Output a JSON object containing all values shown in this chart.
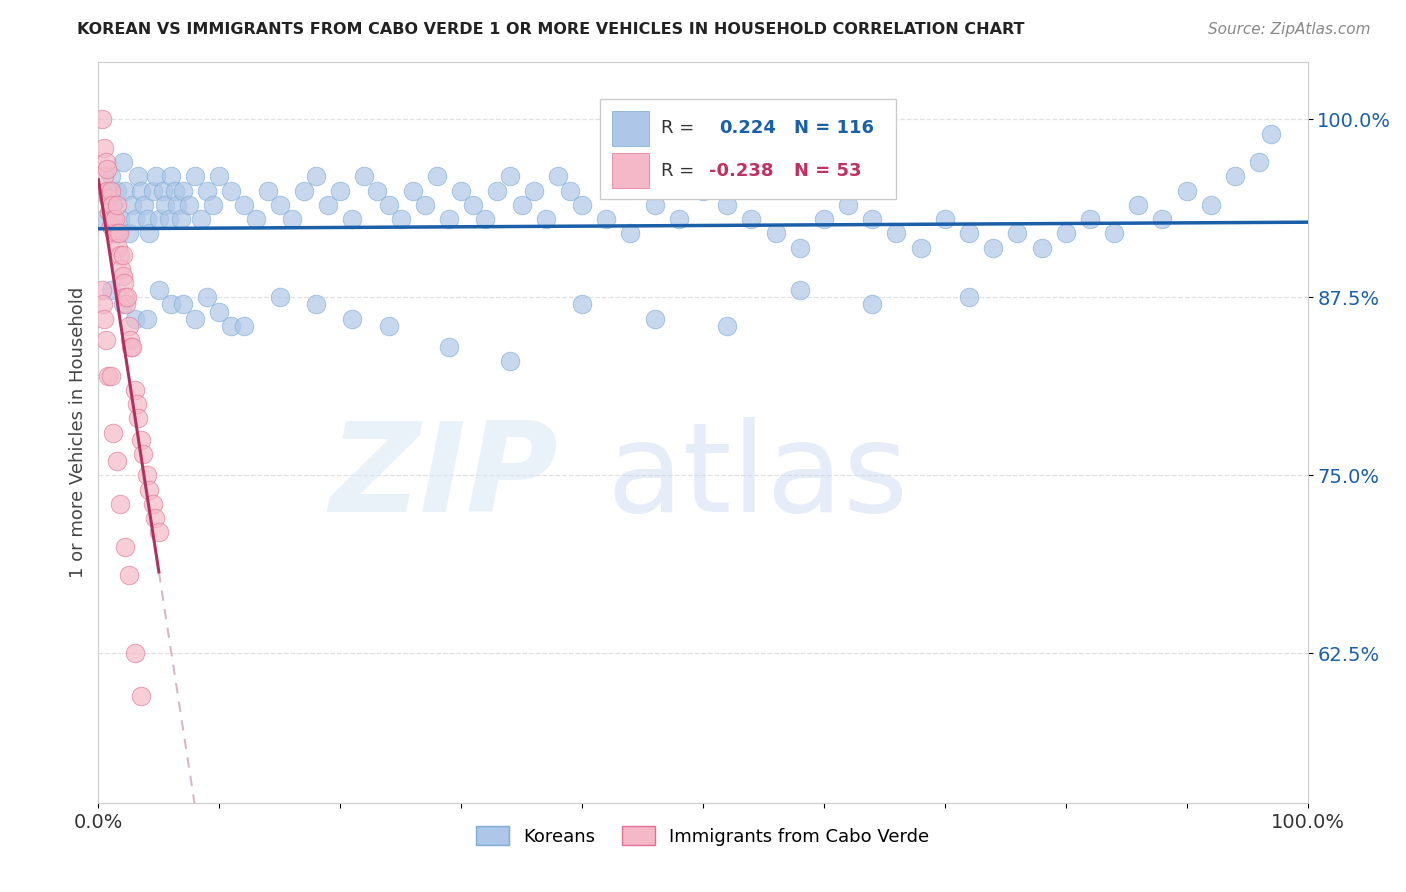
{
  "title": "KOREAN VS IMMIGRANTS FROM CABO VERDE 1 OR MORE VEHICLES IN HOUSEHOLD CORRELATION CHART",
  "source": "Source: ZipAtlas.com",
  "ylabel": "1 or more Vehicles in Household",
  "xlim": [
    0.0,
    1.0
  ],
  "ylim": [
    0.52,
    1.04
  ],
  "yticks": [
    0.625,
    0.75,
    0.875,
    1.0
  ],
  "ytick_labels": [
    "62.5%",
    "75.0%",
    "87.5%",
    "100.0%"
  ],
  "xtick_labels": [
    "0.0%",
    "",
    "",
    "",
    "",
    "",
    "",
    "",
    "",
    "",
    "100.0%"
  ],
  "legend_entries": [
    {
      "label": "Koreans",
      "color": "#aec6e8",
      "edge": "#7bacd4",
      "R": 0.224,
      "N": 116
    },
    {
      "label": "Immigrants from Cabo Verde",
      "color": "#f4b8c8",
      "edge": "#e07090",
      "R": -0.238,
      "N": 53
    }
  ],
  "korean_line_color": "#1a5fa8",
  "cabo_line_color": "#b03060",
  "cabo_dash_color": "#d8b8c8",
  "background_color": "#ffffff",
  "grid_color": "#dddddd",
  "korean_x": [
    0.005,
    0.008,
    0.01,
    0.012,
    0.015,
    0.018,
    0.02,
    0.022,
    0.025,
    0.028,
    0.03,
    0.033,
    0.035,
    0.038,
    0.04,
    0.042,
    0.045,
    0.048,
    0.05,
    0.053,
    0.055,
    0.058,
    0.06,
    0.063,
    0.065,
    0.068,
    0.07,
    0.075,
    0.08,
    0.085,
    0.09,
    0.095,
    0.1,
    0.11,
    0.12,
    0.13,
    0.14,
    0.15,
    0.16,
    0.17,
    0.18,
    0.19,
    0.2,
    0.21,
    0.22,
    0.23,
    0.24,
    0.25,
    0.26,
    0.27,
    0.28,
    0.29,
    0.3,
    0.31,
    0.32,
    0.33,
    0.34,
    0.35,
    0.36,
    0.37,
    0.38,
    0.39,
    0.4,
    0.42,
    0.44,
    0.46,
    0.48,
    0.5,
    0.52,
    0.54,
    0.56,
    0.58,
    0.6,
    0.62,
    0.64,
    0.66,
    0.68,
    0.7,
    0.72,
    0.74,
    0.76,
    0.78,
    0.8,
    0.82,
    0.84,
    0.86,
    0.88,
    0.9,
    0.92,
    0.94,
    0.96,
    0.97,
    0.01,
    0.02,
    0.03,
    0.04,
    0.05,
    0.06,
    0.07,
    0.08,
    0.09,
    0.1,
    0.11,
    0.12,
    0.15,
    0.18,
    0.21,
    0.24,
    0.29,
    0.34,
    0.4,
    0.46,
    0.52,
    0.58,
    0.64,
    0.72
  ],
  "korean_y": [
    0.93,
    0.95,
    0.96,
    0.94,
    0.95,
    0.93,
    0.97,
    0.95,
    0.92,
    0.94,
    0.93,
    0.96,
    0.95,
    0.94,
    0.93,
    0.92,
    0.95,
    0.96,
    0.93,
    0.95,
    0.94,
    0.93,
    0.96,
    0.95,
    0.94,
    0.93,
    0.95,
    0.94,
    0.96,
    0.93,
    0.95,
    0.94,
    0.96,
    0.95,
    0.94,
    0.93,
    0.95,
    0.94,
    0.93,
    0.95,
    0.96,
    0.94,
    0.95,
    0.93,
    0.96,
    0.95,
    0.94,
    0.93,
    0.95,
    0.94,
    0.96,
    0.93,
    0.95,
    0.94,
    0.93,
    0.95,
    0.96,
    0.94,
    0.95,
    0.93,
    0.96,
    0.95,
    0.94,
    0.93,
    0.92,
    0.94,
    0.93,
    0.95,
    0.94,
    0.93,
    0.92,
    0.91,
    0.93,
    0.94,
    0.93,
    0.92,
    0.91,
    0.93,
    0.92,
    0.91,
    0.92,
    0.91,
    0.92,
    0.93,
    0.92,
    0.94,
    0.93,
    0.95,
    0.94,
    0.96,
    0.97,
    0.99,
    0.88,
    0.87,
    0.86,
    0.86,
    0.88,
    0.87,
    0.87,
    0.86,
    0.875,
    0.865,
    0.855,
    0.855,
    0.875,
    0.87,
    0.86,
    0.855,
    0.84,
    0.83,
    0.87,
    0.86,
    0.855,
    0.88,
    0.87,
    0.875
  ],
  "cabo_x": [
    0.003,
    0.005,
    0.005,
    0.006,
    0.007,
    0.007,
    0.008,
    0.009,
    0.01,
    0.01,
    0.011,
    0.012,
    0.013,
    0.014,
    0.015,
    0.015,
    0.016,
    0.017,
    0.018,
    0.019,
    0.02,
    0.02,
    0.021,
    0.022,
    0.023,
    0.024,
    0.025,
    0.026,
    0.027,
    0.028,
    0.03,
    0.032,
    0.033,
    0.035,
    0.037,
    0.04,
    0.042,
    0.045,
    0.047,
    0.05,
    0.003,
    0.004,
    0.005,
    0.006,
    0.008,
    0.01,
    0.012,
    0.015,
    0.018,
    0.022,
    0.025,
    0.03,
    0.035
  ],
  "cabo_y": [
    1.0,
    0.98,
    0.96,
    0.97,
    0.95,
    0.965,
    0.945,
    0.935,
    0.925,
    0.95,
    0.94,
    0.93,
    0.92,
    0.93,
    0.92,
    0.94,
    0.91,
    0.92,
    0.905,
    0.895,
    0.89,
    0.905,
    0.885,
    0.875,
    0.87,
    0.875,
    0.855,
    0.845,
    0.84,
    0.84,
    0.81,
    0.8,
    0.79,
    0.775,
    0.765,
    0.75,
    0.74,
    0.73,
    0.72,
    0.71,
    0.88,
    0.87,
    0.86,
    0.845,
    0.82,
    0.82,
    0.78,
    0.76,
    0.73,
    0.7,
    0.68,
    0.625,
    0.595
  ]
}
